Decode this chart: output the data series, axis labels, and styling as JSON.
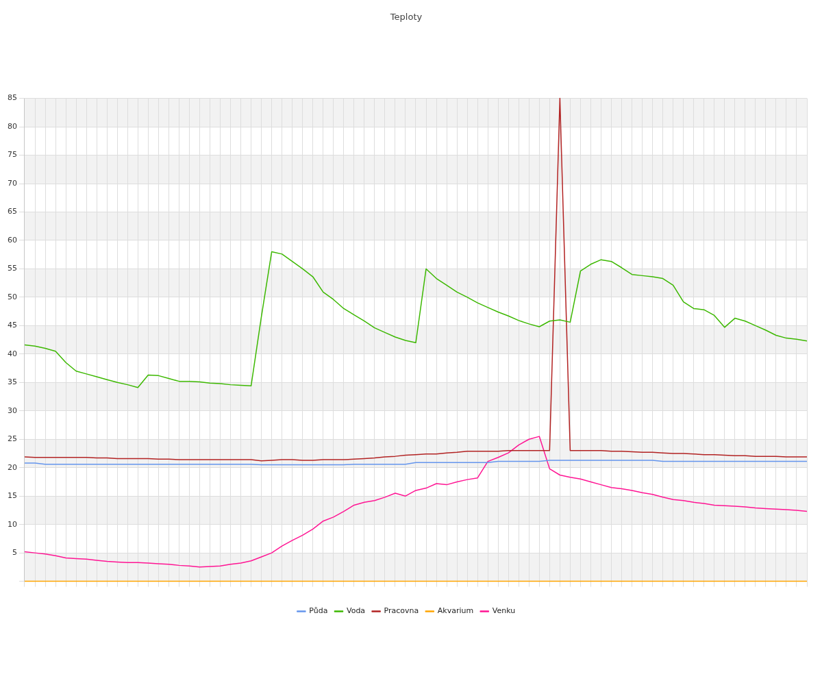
{
  "chart_data": {
    "type": "line",
    "title": "Teploty",
    "categories": [
      null,
      null,
      null,
      null,
      null,
      null,
      null,
      null,
      null,
      null,
      null,
      null,
      null,
      null,
      null,
      null,
      null,
      null,
      null,
      null,
      null,
      null,
      null,
      null,
      null,
      null,
      null,
      null,
      null,
      null,
      null,
      null,
      null,
      null,
      null,
      null,
      null,
      null,
      null,
      null,
      null,
      null,
      null,
      null,
      null,
      null,
      null,
      null,
      null,
      null,
      null,
      null,
      null,
      null,
      null,
      null,
      null,
      null,
      null,
      null,
      null,
      null,
      null,
      null,
      null,
      null,
      null,
      null,
      null,
      null,
      null,
      null,
      null,
      null,
      null,
      null,
      null
    ],
    "series": [
      {
        "name": "Půda",
        "color": "#6495ed",
        "values": [
          20.8,
          20.8,
          20.6,
          20.6,
          20.6,
          20.6,
          20.6,
          20.6,
          20.6,
          20.6,
          20.6,
          20.6,
          20.6,
          20.6,
          20.6,
          20.6,
          20.6,
          20.6,
          20.6,
          20.6,
          20.6,
          20.6,
          20.6,
          20.5,
          20.5,
          20.5,
          20.5,
          20.5,
          20.5,
          20.5,
          20.5,
          20.5,
          20.6,
          20.6,
          20.6,
          20.6,
          20.6,
          20.6,
          20.9,
          20.9,
          20.9,
          20.9,
          20.9,
          20.9,
          20.9,
          20.9,
          21.1,
          21.1,
          21.1,
          21.1,
          21.1,
          21.3,
          21.3,
          21.3,
          21.3,
          21.3,
          21.3,
          21.3,
          21.3,
          21.3,
          21.3,
          21.3,
          21.1,
          21.1,
          21.1,
          21.1,
          21.1,
          21.1,
          21.1,
          21.1,
          21.1,
          21.1,
          21.1,
          21.1,
          21.1,
          21.1,
          21.1
        ]
      },
      {
        "name": "Voda",
        "color": "#3cb800",
        "values": [
          41.6,
          41.4,
          41.0,
          40.5,
          38.5,
          37.0,
          36.5,
          36.0,
          35.5,
          35.0,
          34.6,
          34.1,
          36.3,
          36.2,
          35.7,
          35.2,
          35.2,
          35.1,
          34.9,
          34.8,
          34.6,
          34.5,
          34.4,
          46.6,
          58.0,
          57.6,
          56.3,
          55.0,
          53.6,
          50.9,
          49.6,
          48.0,
          46.9,
          45.8,
          44.6,
          43.8,
          43.0,
          42.4,
          42.0,
          55.0,
          53.3,
          52.1,
          50.9,
          50.0,
          49.0,
          48.2,
          47.4,
          46.7,
          45.9,
          45.3,
          44.8,
          45.8,
          46.0,
          45.6,
          54.6,
          55.8,
          56.6,
          56.3,
          55.2,
          54.0,
          53.8,
          53.6,
          53.3,
          52.1,
          49.2,
          48.0,
          47.8,
          46.8,
          44.7,
          46.3,
          45.8,
          45.0,
          44.2,
          43.3,
          42.8,
          42.6,
          42.3
        ]
      },
      {
        "name": "Pracovna",
        "color": "#b22222",
        "values": [
          21.9,
          21.8,
          21.8,
          21.8,
          21.8,
          21.8,
          21.8,
          21.7,
          21.7,
          21.6,
          21.6,
          21.6,
          21.6,
          21.5,
          21.5,
          21.4,
          21.4,
          21.4,
          21.4,
          21.4,
          21.4,
          21.4,
          21.4,
          21.2,
          21.3,
          21.4,
          21.4,
          21.3,
          21.3,
          21.4,
          21.4,
          21.4,
          21.5,
          21.6,
          21.7,
          21.9,
          22.0,
          22.2,
          22.3,
          22.4,
          22.4,
          22.6,
          22.7,
          22.9,
          22.9,
          22.9,
          22.9,
          23.0,
          23.0,
          23.0,
          23.0,
          23.0,
          85,
          23.0,
          23.0,
          23.0,
          23.0,
          22.9,
          22.9,
          22.8,
          22.7,
          22.7,
          22.6,
          22.5,
          22.5,
          22.4,
          22.3,
          22.3,
          22.2,
          22.1,
          22.1,
          22.0,
          22.0,
          22.0,
          21.9,
          21.9,
          21.9
        ]
      },
      {
        "name": "Akvarium",
        "color": "#ffa500",
        "values": [
          0,
          0,
          0,
          0,
          0,
          0,
          0,
          0,
          0,
          0,
          0,
          0,
          0,
          0,
          0,
          0,
          0,
          0,
          0,
          0,
          0,
          0,
          0,
          0,
          0,
          0,
          0,
          0,
          0,
          0,
          0,
          0,
          0,
          0,
          0,
          0,
          0,
          0,
          0,
          0,
          0,
          0,
          0,
          0,
          0,
          0,
          0,
          0,
          0,
          0,
          0,
          0,
          0,
          0,
          0,
          0,
          0,
          0,
          0,
          0,
          0,
          0,
          0,
          0,
          0,
          0,
          0,
          0,
          0,
          0,
          0,
          0,
          0,
          0,
          0,
          0,
          0
        ]
      },
      {
        "name": "Venku",
        "color": "#ff1493",
        "values": [
          5.2,
          5.0,
          4.8,
          4.5,
          4.1,
          4.0,
          3.9,
          3.7,
          3.5,
          3.4,
          3.3,
          3.3,
          3.2,
          3.1,
          3.0,
          2.8,
          2.7,
          2.5,
          2.6,
          2.7,
          3.0,
          3.2,
          3.6,
          4.3,
          5.0,
          6.2,
          7.2,
          8.1,
          9.2,
          10.6,
          11.3,
          12.3,
          13.4,
          13.9,
          14.2,
          14.8,
          15.5,
          15.0,
          16.0,
          16.4,
          17.2,
          17.0,
          17.5,
          17.9,
          18.2,
          21.1,
          21.8,
          22.6,
          24.0,
          25.0,
          25.5,
          19.8,
          18.7,
          18.3,
          18.0,
          17.5,
          17.0,
          16.5,
          16.3,
          16.0,
          15.6,
          15.3,
          14.8,
          14.4,
          14.2,
          13.9,
          13.7,
          13.4,
          13.3,
          13.2,
          13.1,
          12.9,
          12.8,
          12.7,
          12.6,
          12.5,
          12.3
        ]
      }
    ],
    "ylim": [
      0,
      85
    ],
    "yticks": [
      {
        "value": 0,
        "label": null
      },
      5,
      10,
      15,
      20,
      25,
      30,
      35,
      40,
      45,
      50,
      55,
      60,
      65,
      70,
      75,
      80,
      85
    ],
    "grid": true,
    "legend": "bottom",
    "marker": "none",
    "line_style": "solid"
  }
}
